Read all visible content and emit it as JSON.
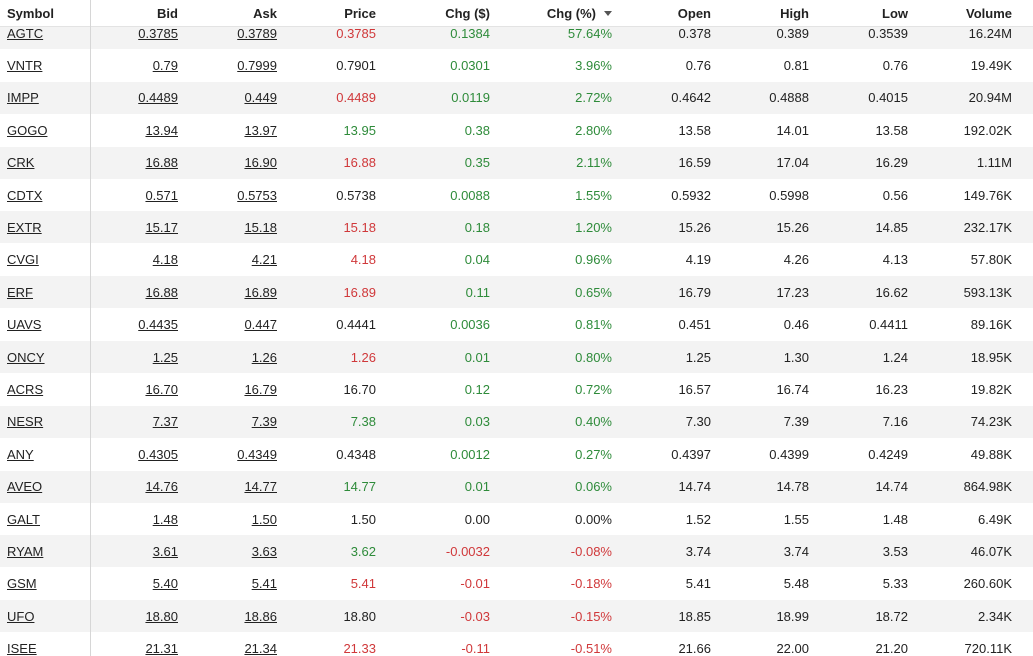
{
  "columns": {
    "symbol": "Symbol",
    "bid": "Bid",
    "ask": "Ask",
    "price": "Price",
    "chg": "Chg ($)",
    "chg_pct": "Chg (%)",
    "open": "Open",
    "high": "High",
    "low": "Low",
    "volume": "Volume"
  },
  "sort_icon": "sort-desc-icon",
  "colors": {
    "positive": "#2e8b3a",
    "negative": "#d0383a",
    "neutral": "#222222",
    "alt_row": "#f3f3f3"
  },
  "rows": [
    {
      "symbol": "AGTC",
      "bid": "0.3785",
      "bid_c": "neg",
      "ask": "0.3789",
      "ask_c": "neg",
      "price": "0.3785",
      "price_c": "neg",
      "chg": "0.1384",
      "chg_pct": "57.64%",
      "open": "0.378",
      "high": "0.389",
      "low": "0.3539",
      "volume": "16.24M"
    },
    {
      "symbol": "VNTR",
      "bid": "0.79",
      "bid_c": "neu",
      "ask": "0.7999",
      "ask_c": "neu",
      "price": "0.7901",
      "price_c": "neu",
      "chg": "0.0301",
      "chg_pct": "3.96%",
      "open": "0.76",
      "high": "0.81",
      "low": "0.76",
      "volume": "19.49K"
    },
    {
      "symbol": "IMPP",
      "bid": "0.4489",
      "bid_c": "pos",
      "ask": "0.449",
      "ask_c": "neg",
      "price": "0.4489",
      "price_c": "neg",
      "chg": "0.0119",
      "chg_pct": "2.72%",
      "open": "0.4642",
      "high": "0.4888",
      "low": "0.4015",
      "volume": "20.94M"
    },
    {
      "symbol": "GOGO",
      "bid": "13.94",
      "bid_c": "neg",
      "ask": "13.97",
      "ask_c": "pos",
      "price": "13.95",
      "price_c": "pos",
      "chg": "0.38",
      "chg_pct": "2.80%",
      "open": "13.58",
      "high": "14.01",
      "low": "13.58",
      "volume": "192.02K"
    },
    {
      "symbol": "CRK",
      "bid": "16.88",
      "bid_c": "neg",
      "ask": "16.90",
      "ask_c": "pos",
      "price": "16.88",
      "price_c": "neg",
      "chg": "0.35",
      "chg_pct": "2.11%",
      "open": "16.59",
      "high": "17.04",
      "low": "16.29",
      "volume": "1.11M"
    },
    {
      "symbol": "CDTX",
      "bid": "0.571",
      "bid_c": "neu",
      "ask": "0.5753",
      "ask_c": "neu",
      "price": "0.5738",
      "price_c": "neu",
      "chg": "0.0088",
      "chg_pct": "1.55%",
      "open": "0.5932",
      "high": "0.5998",
      "low": "0.56",
      "volume": "149.76K"
    },
    {
      "symbol": "EXTR",
      "bid": "15.17",
      "bid_c": "neg",
      "ask": "15.18",
      "ask_c": "neg",
      "price": "15.18",
      "price_c": "neg",
      "chg": "0.18",
      "chg_pct": "1.20%",
      "open": "15.26",
      "high": "15.26",
      "low": "14.85",
      "volume": "232.17K"
    },
    {
      "symbol": "CVGI",
      "bid": "4.18",
      "bid_c": "neu",
      "ask": "4.21",
      "ask_c": "neu",
      "price": "4.18",
      "price_c": "neg",
      "chg": "0.04",
      "chg_pct": "0.96%",
      "open": "4.19",
      "high": "4.26",
      "low": "4.13",
      "volume": "57.80K"
    },
    {
      "symbol": "ERF",
      "bid": "16.88",
      "bid_c": "neg",
      "ask": "16.89",
      "ask_c": "neg",
      "price": "16.89",
      "price_c": "neg",
      "chg": "0.11",
      "chg_pct": "0.65%",
      "open": "16.79",
      "high": "17.23",
      "low": "16.62",
      "volume": "593.13K"
    },
    {
      "symbol": "UAVS",
      "bid": "0.4435",
      "bid_c": "neu",
      "ask": "0.447",
      "ask_c": "neu",
      "price": "0.4441",
      "price_c": "neu",
      "chg": "0.0036",
      "chg_pct": "0.81%",
      "open": "0.451",
      "high": "0.46",
      "low": "0.4411",
      "volume": "89.16K"
    },
    {
      "symbol": "ONCY",
      "bid": "1.25",
      "bid_c": "neg",
      "ask": "1.26",
      "ask_c": "neg",
      "price": "1.26",
      "price_c": "neg",
      "chg": "0.01",
      "chg_pct": "0.80%",
      "open": "1.25",
      "high": "1.30",
      "low": "1.24",
      "volume": "18.95K"
    },
    {
      "symbol": "ACRS",
      "bid": "16.70",
      "bid_c": "pos",
      "ask": "16.79",
      "ask_c": "neg",
      "price": "16.70",
      "price_c": "neu",
      "chg": "0.12",
      "chg_pct": "0.72%",
      "open": "16.57",
      "high": "16.74",
      "low": "16.23",
      "volume": "19.82K"
    },
    {
      "symbol": "NESR",
      "bid": "7.37",
      "bid_c": "neg",
      "ask": "7.39",
      "ask_c": "neg",
      "price": "7.38",
      "price_c": "pos",
      "chg": "0.03",
      "chg_pct": "0.40%",
      "open": "7.30",
      "high": "7.39",
      "low": "7.16",
      "volume": "74.23K"
    },
    {
      "symbol": "ANY",
      "bid": "0.4305",
      "bid_c": "pos",
      "ask": "0.4349",
      "ask_c": "neu",
      "price": "0.4348",
      "price_c": "neu",
      "chg": "0.0012",
      "chg_pct": "0.27%",
      "open": "0.4397",
      "high": "0.4399",
      "low": "0.4249",
      "volume": "49.88K"
    },
    {
      "symbol": "AVEO",
      "bid": "14.76",
      "bid_c": "neu",
      "ask": "14.77",
      "ask_c": "neu",
      "price": "14.77",
      "price_c": "pos",
      "chg": "0.01",
      "chg_pct": "0.06%",
      "open": "14.74",
      "high": "14.78",
      "low": "14.74",
      "volume": "864.98K"
    },
    {
      "symbol": "GALT",
      "bid": "1.48",
      "bid_c": "neu",
      "ask": "1.50",
      "ask_c": "neu",
      "price": "1.50",
      "price_c": "neu",
      "chg": "0.00",
      "chg_pct": "0.00%",
      "open": "1.52",
      "high": "1.55",
      "low": "1.48",
      "volume": "6.49K",
      "flat": true
    },
    {
      "symbol": "RYAM",
      "bid": "3.61",
      "bid_c": "pos",
      "ask": "3.63",
      "ask_c": "neu",
      "price": "3.62",
      "price_c": "pos",
      "chg": "-0.0032",
      "chg_pct": "-0.08%",
      "open": "3.74",
      "high": "3.74",
      "low": "3.53",
      "volume": "46.07K"
    },
    {
      "symbol": "GSM",
      "bid": "5.40",
      "bid_c": "neg",
      "ask": "5.41",
      "ask_c": "neg",
      "price": "5.41",
      "price_c": "neg",
      "chg": "-0.01",
      "chg_pct": "-0.18%",
      "open": "5.41",
      "high": "5.48",
      "low": "5.33",
      "volume": "260.60K"
    },
    {
      "symbol": "UFO",
      "bid": "18.80",
      "bid_c": "neg",
      "ask": "18.86",
      "ask_c": "pos",
      "price": "18.80",
      "price_c": "neu",
      "chg": "-0.03",
      "chg_pct": "-0.15%",
      "open": "18.85",
      "high": "18.99",
      "low": "18.72",
      "volume": "2.34K"
    },
    {
      "symbol": "ISEE",
      "bid": "21.31",
      "bid_c": "neg",
      "ask": "21.34",
      "ask_c": "neg",
      "price": "21.33",
      "price_c": "neg",
      "chg": "-0.11",
      "chg_pct": "-0.51%",
      "open": "21.66",
      "high": "22.00",
      "low": "21.20",
      "volume": "720.11K"
    }
  ]
}
